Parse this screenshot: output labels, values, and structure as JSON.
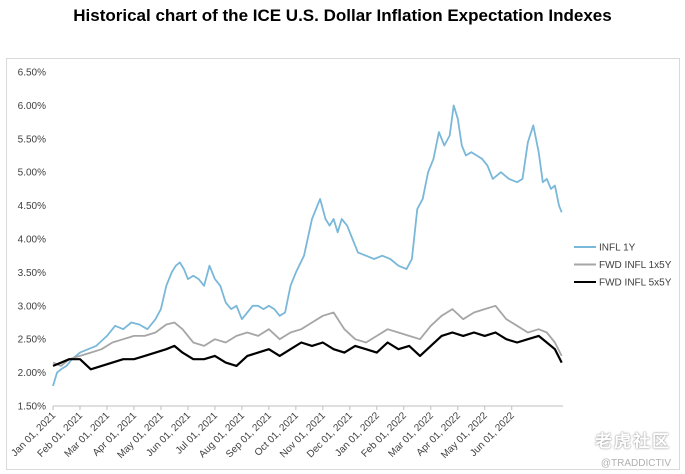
{
  "chart_data": {
    "type": "line",
    "title": "Historical chart of the ICE U.S. Dollar Inflation Expectation Indexes",
    "xlabel": "",
    "ylabel": "",
    "ylim": [
      1.5,
      6.5
    ],
    "grid": false,
    "legend_position": "right",
    "y_ticks": [
      1.5,
      2.0,
      2.5,
      3.0,
      3.5,
      4.0,
      4.5,
      5.0,
      5.5,
      6.0,
      6.5
    ],
    "y_tick_labels": [
      "1.50%",
      "2.00%",
      "2.50%",
      "3.00%",
      "3.50%",
      "4.00%",
      "4.50%",
      "5.00%",
      "5.50%",
      "6.00%",
      "6.50%"
    ],
    "x_tick_labels": [
      "Jan 01, 2021",
      "Feb 01, 2021",
      "Mar 01, 2021",
      "Apr 01, 2021",
      "May 01, 2021",
      "Jun 01, 2021",
      "Jul 01, 2021",
      "Aug 01, 2021",
      "Sep 01, 2021",
      "Oct 01, 2021",
      "Nov 01, 2021",
      "Dec 01, 2021",
      "Jan 01, 2022",
      "Feb 01, 2022",
      "Mar 01, 2022",
      "Apr 01, 2022",
      "May 01, 2022",
      "Jun 01, 2022"
    ],
    "x_range_months": [
      0,
      18.9
    ],
    "series": [
      {
        "name": "INFL 1Y",
        "color": "#7ab8d9",
        "x": [
          0.0,
          0.15,
          0.3,
          0.5,
          0.7,
          1.0,
          1.3,
          1.6,
          2.0,
          2.3,
          2.6,
          2.9,
          3.2,
          3.5,
          3.8,
          4.0,
          4.2,
          4.4,
          4.55,
          4.7,
          4.85,
          5.0,
          5.2,
          5.4,
          5.6,
          5.8,
          6.0,
          6.2,
          6.4,
          6.6,
          6.8,
          7.0,
          7.2,
          7.4,
          7.6,
          7.8,
          8.0,
          8.2,
          8.4,
          8.6,
          8.8,
          9.0,
          9.3,
          9.6,
          9.9,
          10.1,
          10.25,
          10.4,
          10.55,
          10.7,
          10.9,
          11.1,
          11.3,
          11.6,
          11.9,
          12.2,
          12.5,
          12.8,
          13.1,
          13.3,
          13.5,
          13.7,
          13.9,
          14.1,
          14.3,
          14.5,
          14.7,
          14.85,
          15.0,
          15.15,
          15.3,
          15.5,
          15.7,
          15.9,
          16.1,
          16.3,
          16.6,
          16.9,
          17.2,
          17.4,
          17.6,
          17.8,
          18.0,
          18.15,
          18.3,
          18.45,
          18.6,
          18.75,
          18.85
        ],
        "values": [
          1.8,
          2.0,
          2.05,
          2.1,
          2.2,
          2.3,
          2.35,
          2.4,
          2.55,
          2.7,
          2.65,
          2.75,
          2.72,
          2.65,
          2.8,
          2.95,
          3.3,
          3.5,
          3.6,
          3.65,
          3.55,
          3.4,
          3.45,
          3.4,
          3.3,
          3.6,
          3.4,
          3.3,
          3.05,
          2.95,
          3.0,
          2.8,
          2.9,
          3.0,
          3.0,
          2.95,
          3.0,
          2.95,
          2.85,
          2.9,
          3.3,
          3.5,
          3.75,
          4.3,
          4.6,
          4.3,
          4.2,
          4.3,
          4.1,
          4.3,
          4.2,
          4.0,
          3.8,
          3.75,
          3.7,
          3.75,
          3.7,
          3.6,
          3.55,
          3.7,
          4.45,
          4.6,
          5.0,
          5.2,
          5.6,
          5.4,
          5.55,
          6.0,
          5.8,
          5.4,
          5.25,
          5.3,
          5.25,
          5.2,
          5.1,
          4.9,
          5.0,
          4.9,
          4.85,
          4.9,
          5.45,
          5.7,
          5.3,
          4.85,
          4.9,
          4.75,
          4.8,
          4.5,
          4.4
        ]
      },
      {
        "name": "FWD INFL 1x5Y",
        "color": "#a6a6a6",
        "x": [
          0.0,
          0.3,
          0.6,
          1.0,
          1.4,
          1.8,
          2.2,
          2.6,
          3.0,
          3.4,
          3.8,
          4.2,
          4.5,
          4.8,
          5.2,
          5.6,
          6.0,
          6.4,
          6.8,
          7.2,
          7.6,
          8.0,
          8.4,
          8.8,
          9.2,
          9.6,
          10.0,
          10.4,
          10.8,
          11.2,
          11.6,
          12.0,
          12.4,
          12.8,
          13.2,
          13.6,
          14.0,
          14.4,
          14.8,
          15.2,
          15.6,
          16.0,
          16.4,
          16.8,
          17.2,
          17.6,
          18.0,
          18.3,
          18.6,
          18.85
        ],
        "values": [
          2.15,
          2.1,
          2.2,
          2.25,
          2.3,
          2.35,
          2.45,
          2.5,
          2.55,
          2.55,
          2.6,
          2.72,
          2.75,
          2.65,
          2.45,
          2.4,
          2.5,
          2.45,
          2.55,
          2.6,
          2.55,
          2.65,
          2.5,
          2.6,
          2.65,
          2.75,
          2.85,
          2.9,
          2.65,
          2.5,
          2.45,
          2.55,
          2.65,
          2.6,
          2.55,
          2.5,
          2.7,
          2.85,
          2.95,
          2.8,
          2.9,
          2.95,
          3.0,
          2.8,
          2.7,
          2.6,
          2.65,
          2.6,
          2.45,
          2.25
        ]
      },
      {
        "name": "FWD INFL 5x5Y",
        "color": "#000000",
        "x": [
          0.0,
          0.3,
          0.6,
          1.0,
          1.4,
          1.8,
          2.2,
          2.6,
          3.0,
          3.4,
          3.8,
          4.2,
          4.5,
          4.8,
          5.2,
          5.6,
          6.0,
          6.4,
          6.8,
          7.2,
          7.6,
          8.0,
          8.4,
          8.8,
          9.2,
          9.6,
          10.0,
          10.4,
          10.8,
          11.2,
          11.6,
          12.0,
          12.4,
          12.8,
          13.2,
          13.6,
          14.0,
          14.4,
          14.8,
          15.2,
          15.6,
          16.0,
          16.4,
          16.8,
          17.2,
          17.6,
          18.0,
          18.3,
          18.6,
          18.85
        ],
        "values": [
          2.1,
          2.15,
          2.2,
          2.2,
          2.05,
          2.1,
          2.15,
          2.2,
          2.2,
          2.25,
          2.3,
          2.35,
          2.4,
          2.3,
          2.2,
          2.2,
          2.25,
          2.15,
          2.1,
          2.25,
          2.3,
          2.35,
          2.25,
          2.35,
          2.45,
          2.4,
          2.45,
          2.35,
          2.3,
          2.4,
          2.35,
          2.3,
          2.45,
          2.35,
          2.4,
          2.25,
          2.4,
          2.55,
          2.6,
          2.55,
          2.6,
          2.55,
          2.6,
          2.5,
          2.45,
          2.5,
          2.55,
          2.45,
          2.35,
          2.15
        ]
      }
    ]
  },
  "watermark": {
    "logo_text": "老虎社区",
    "handle": "@TRADDICTIV"
  }
}
